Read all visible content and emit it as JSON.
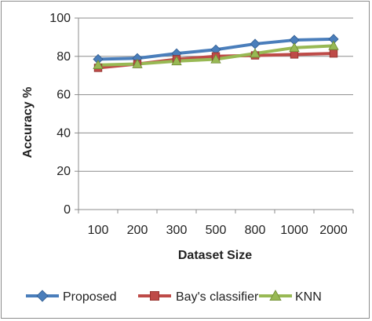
{
  "chart_data": {
    "type": "line",
    "title": "",
    "xlabel": "Dataset Size",
    "ylabel": "Accuracy %",
    "ylim": [
      0,
      100
    ],
    "yticks": [
      0,
      20,
      40,
      60,
      80,
      100
    ],
    "grid": "horizontal",
    "legend_position": "bottom",
    "categories": [
      "100",
      "200",
      "300",
      "500",
      "800",
      "1000",
      "2000"
    ],
    "series": [
      {
        "name": "Proposed",
        "color": "#4a7ebb",
        "marker": "diamond",
        "values": [
          78.5,
          79,
          81.5,
          83.5,
          86.5,
          88.5,
          89
        ]
      },
      {
        "name": "Bay's classifier",
        "color": "#be4b48",
        "marker": "square",
        "values": [
          74,
          76,
          78.5,
          80,
          80.5,
          81,
          81.5
        ]
      },
      {
        "name": "KNN",
        "color": "#98b954",
        "marker": "triangle",
        "values": [
          75.5,
          76,
          77.5,
          78.5,
          81.5,
          84.5,
          85.5
        ]
      }
    ]
  }
}
